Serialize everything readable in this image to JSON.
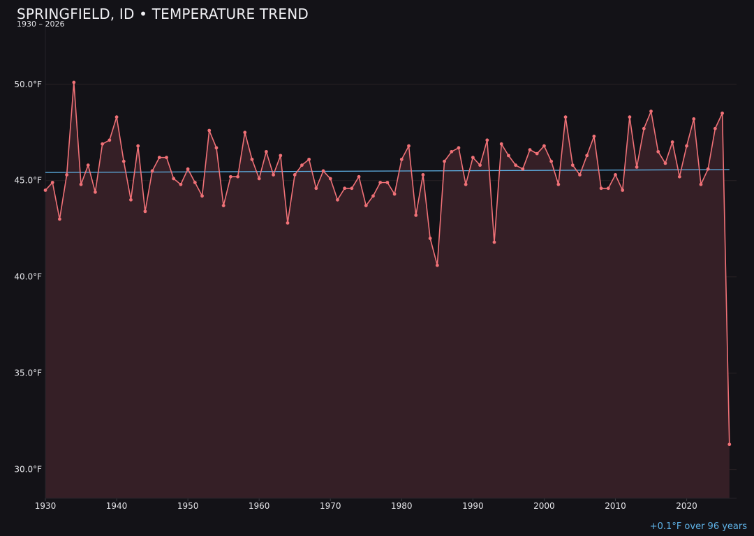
{
  "chart_data": {
    "type": "area",
    "title": "SPRINGFIELD, ID • TEMPERATURE TREND",
    "subtitle": "1930 – 2026",
    "xlabel": "",
    "ylabel": "",
    "xlim": [
      1930,
      2027
    ],
    "ylim": [
      28.5,
      53.0
    ],
    "grid": true,
    "x_ticks": [
      1930,
      1940,
      1950,
      1960,
      1970,
      1980,
      1990,
      2000,
      2010,
      2020
    ],
    "x_tick_labels": [
      "1930",
      "1940",
      "1950",
      "1960",
      "1970",
      "1980",
      "1990",
      "2000",
      "2010",
      "2020"
    ],
    "y_ticks": [
      30,
      35,
      40,
      45,
      50
    ],
    "y_tick_labels": [
      "30.0°F",
      "35.0°F",
      "40.0°F",
      "45.0°F",
      "50.0°F"
    ],
    "x": [
      1930,
      1931,
      1932,
      1933,
      1934,
      1935,
      1936,
      1937,
      1938,
      1939,
      1940,
      1941,
      1942,
      1943,
      1944,
      1945,
      1946,
      1947,
      1948,
      1949,
      1950,
      1951,
      1952,
      1953,
      1954,
      1955,
      1956,
      1957,
      1958,
      1959,
      1960,
      1961,
      1962,
      1963,
      1964,
      1965,
      1966,
      1967,
      1968,
      1969,
      1970,
      1971,
      1972,
      1973,
      1974,
      1975,
      1976,
      1977,
      1978,
      1979,
      1980,
      1981,
      1982,
      1983,
      1984,
      1985,
      1986,
      1987,
      1988,
      1989,
      1990,
      1991,
      1992,
      1993,
      1994,
      1995,
      1996,
      1997,
      1998,
      1999,
      2000,
      2001,
      2002,
      2003,
      2004,
      2005,
      2006,
      2007,
      2008,
      2009,
      2010,
      2011,
      2012,
      2013,
      2014,
      2015,
      2016,
      2017,
      2018,
      2019,
      2020,
      2021,
      2022,
      2023,
      2024,
      2025,
      2026
    ],
    "series": [
      {
        "color": "#f07177",
        "values": [
          44.5,
          44.9,
          43.0,
          45.3,
          50.1,
          44.8,
          45.8,
          44.4,
          46.9,
          47.1,
          48.3,
          46.0,
          44.0,
          46.8,
          43.4,
          45.5,
          46.2,
          46.2,
          45.1,
          44.8,
          45.6,
          44.9,
          44.2,
          47.6,
          46.7,
          43.7,
          45.2,
          45.2,
          47.5,
          46.1,
          45.1,
          46.5,
          45.3,
          46.3,
          42.8,
          45.3,
          45.8,
          46.1,
          44.6,
          45.5,
          45.1,
          44.0,
          44.6,
          44.6,
          45.2,
          43.7,
          44.2,
          44.9,
          44.9,
          44.3,
          46.1,
          46.8,
          43.2,
          45.3,
          42.0,
          40.6,
          46.0,
          46.5,
          46.7,
          44.8,
          46.2,
          45.8,
          47.1,
          41.8,
          46.9,
          46.3,
          45.8,
          45.6,
          46.6,
          46.4,
          46.8,
          46.0,
          44.8,
          48.3,
          45.8,
          45.3,
          46.3,
          47.3,
          44.6,
          44.6,
          45.3,
          44.5,
          48.3,
          45.7,
          47.7,
          48.6,
          46.5,
          45.9,
          47.0,
          45.2,
          46.8,
          48.2,
          44.8,
          45.6,
          47.7,
          48.5,
          31.3
        ],
        "fill": "#351f26"
      },
      {
        "color": "#5fb3e8",
        "type": "trendline",
        "x": [
          1930,
          2026
        ],
        "values": [
          45.42,
          45.57
        ]
      }
    ],
    "annotation": "+0.1°F over 96 years"
  }
}
